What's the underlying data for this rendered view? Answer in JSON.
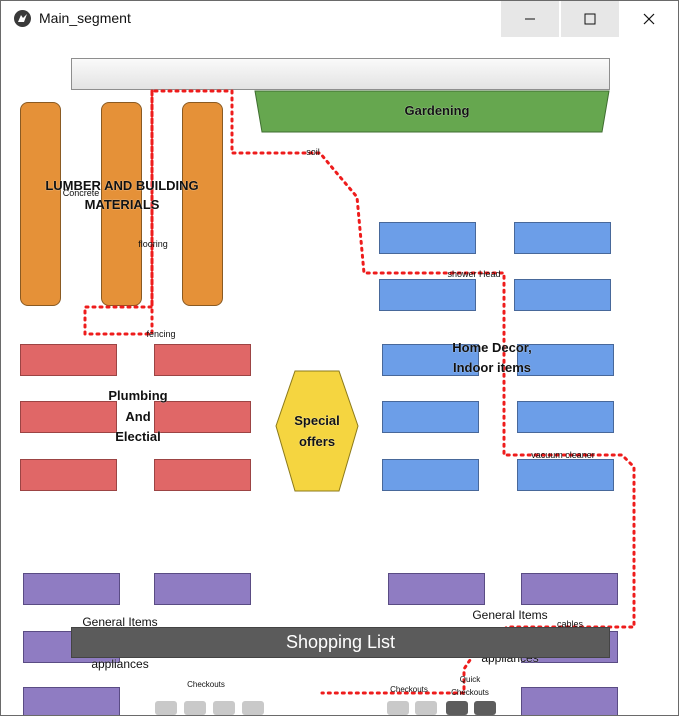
{
  "window": {
    "title": "Main_segment",
    "minimize_icon": "minimize-icon",
    "maximize_icon": "maximize-icon",
    "close_icon": "close-icon"
  },
  "map": {
    "gardening": "Gardening",
    "lumber_title_1": "LUMBER AND BUILDING",
    "lumber_title_2": "MATERIALS",
    "plumbing_1": "Plumbing",
    "plumbing_2": "And",
    "plumbing_3": "Electial",
    "special_1": "Special",
    "special_2": "offers",
    "home_decor_1": "Home Decor,",
    "home_decor_2": "Indoor items",
    "general_left": "General Items",
    "appliances_left": "appliances",
    "general_right": "General Items",
    "appliances_right": "appliances",
    "checkouts_left": "Checkouts",
    "checkouts_right": "Checkouts",
    "quick_checkouts_1": "Quick",
    "quick_checkouts_2": "Checkouts"
  },
  "route_labels": {
    "soil": "soil",
    "concrete": "Concrete",
    "flooring": "flooring",
    "fencing": "fencing",
    "shower_head": "shower Head",
    "vacuum_cleaner": "vacuum cleaner",
    "cables": "cables"
  },
  "colors": {
    "gardening": "#66a74f",
    "lumber": "#e59138",
    "plumbing": "#e06767",
    "home_decor": "#6c9ee8",
    "general": "#8f7cc2",
    "special_offers": "#f5d540",
    "route": "#ee1c1c"
  },
  "shopping_list": {
    "label": "Shopping List"
  }
}
